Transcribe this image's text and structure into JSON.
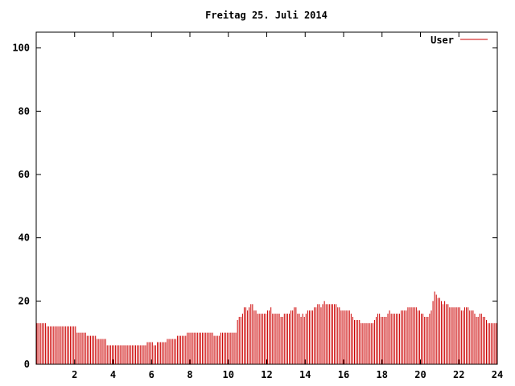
{
  "chart_data": {
    "type": "bar",
    "title": "Freitag 25. Juli 2014",
    "xlabel": "",
    "ylabel": "",
    "xlim": [
      0,
      24
    ],
    "ylim": [
      0,
      105
    ],
    "x_ticks": [
      2,
      4,
      6,
      8,
      10,
      12,
      14,
      16,
      18,
      20,
      22,
      24
    ],
    "y_ticks": [
      0,
      20,
      40,
      60,
      80,
      100
    ],
    "grid": false,
    "legend_position": "top-right",
    "series": [
      {
        "name": "User",
        "color": "#cc0000",
        "bin_hours": 0.0833,
        "values": [
          13,
          13,
          13,
          13,
          13,
          13,
          12,
          12,
          12,
          12,
          12,
          12,
          12,
          12,
          12,
          12,
          12,
          12,
          12,
          12,
          12,
          12,
          12,
          12,
          10,
          10,
          10,
          10,
          10,
          10,
          9,
          9,
          9,
          9,
          9,
          9,
          8,
          8,
          8,
          8,
          8,
          8,
          6,
          6,
          6,
          6,
          6,
          6,
          6,
          6,
          6,
          6,
          6,
          6,
          6,
          6,
          6,
          6,
          6,
          6,
          6,
          6,
          6,
          6,
          6,
          6,
          7,
          7,
          7,
          7,
          6,
          6,
          7,
          7,
          7,
          7,
          7,
          7,
          8,
          8,
          8,
          8,
          8,
          8,
          9,
          9,
          9,
          9,
          9,
          9,
          10,
          10,
          10,
          10,
          10,
          10,
          10,
          10,
          10,
          10,
          10,
          10,
          10,
          10,
          10,
          10,
          9,
          9,
          9,
          9,
          10,
          10,
          10,
          10,
          10,
          10,
          10,
          10,
          10,
          10,
          14,
          15,
          15,
          16,
          18,
          18,
          17,
          18,
          19,
          19,
          17,
          17,
          16,
          16,
          16,
          16,
          16,
          16,
          17,
          17,
          18,
          16,
          16,
          16,
          16,
          16,
          15,
          15,
          16,
          16,
          16,
          16,
          17,
          17,
          18,
          18,
          16,
          16,
          15,
          16,
          15,
          16,
          17,
          17,
          17,
          17,
          18,
          18,
          19,
          19,
          18,
          19,
          20,
          19,
          19,
          19,
          19,
          19,
          19,
          19,
          18,
          18,
          17,
          17,
          17,
          17,
          17,
          17,
          16,
          15,
          14,
          14,
          14,
          14,
          13,
          13,
          13,
          13,
          13,
          13,
          13,
          13,
          14,
          15,
          16,
          16,
          15,
          15,
          15,
          15,
          16,
          17,
          16,
          16,
          16,
          16,
          16,
          16,
          17,
          17,
          17,
          17,
          18,
          18,
          18,
          18,
          18,
          18,
          17,
          17,
          16,
          16,
          15,
          15,
          15,
          16,
          17,
          20,
          23,
          22,
          21,
          21,
          20,
          19,
          20,
          19,
          19,
          18,
          18,
          18,
          18,
          18,
          18,
          18,
          17,
          17,
          18,
          18,
          18,
          17,
          17,
          17,
          16,
          15,
          15,
          16,
          16,
          15,
          15,
          14,
          13,
          13,
          13,
          13,
          13,
          13
        ]
      }
    ]
  }
}
